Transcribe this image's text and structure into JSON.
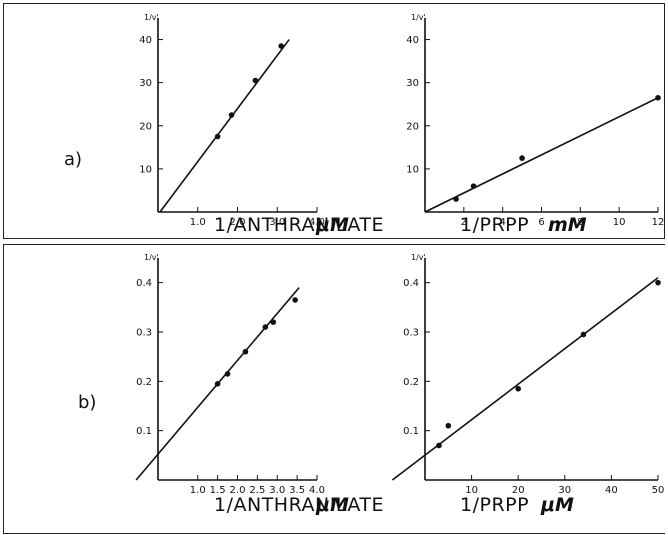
{
  "figure": {
    "panel_labels": [
      "a)",
      "b)"
    ]
  },
  "chart_data": [
    {
      "type": "scatter",
      "panel": "a)",
      "ylabel": "1/v'",
      "xlabel": "1/ANTHRANILATE",
      "xunit": "μM",
      "xlim": [
        0,
        4.0
      ],
      "ylim": [
        0,
        45
      ],
      "xticks": [
        1.0,
        2.0,
        3.0,
        4.0
      ],
      "xtick_labels": [
        "1.0",
        "2.0",
        "3.0",
        "4.0"
      ],
      "yticks": [
        10,
        20,
        30,
        40
      ],
      "ytick_labels": [
        "10",
        "20",
        "30",
        "40"
      ],
      "points": [
        [
          1.5,
          17.5
        ],
        [
          1.85,
          22.5
        ],
        [
          2.45,
          30.5
        ],
        [
          3.1,
          38.5
        ]
      ],
      "fit_line": [
        [
          0.05,
          0
        ],
        [
          3.3,
          40
        ]
      ]
    },
    {
      "type": "scatter",
      "panel": "a)",
      "ylabel": "1/v'",
      "xlabel": "1/PRPP",
      "xunit": "mM",
      "xlim": [
        0,
        12
      ],
      "ylim": [
        0,
        45
      ],
      "xticks": [
        2,
        4,
        6,
        8,
        10,
        12
      ],
      "xtick_labels": [
        "2",
        "4",
        "6",
        "8",
        "10",
        "12"
      ],
      "yticks": [
        10,
        20,
        30,
        40
      ],
      "ytick_labels": [
        "10",
        "20",
        "30",
        "40"
      ],
      "points": [
        [
          1.6,
          3
        ],
        [
          2.5,
          6
        ],
        [
          5,
          12.5
        ],
        [
          12,
          26.5
        ]
      ],
      "fit_line": [
        [
          0,
          0
        ],
        [
          12,
          26.5
        ]
      ]
    },
    {
      "type": "scatter",
      "panel": "b)",
      "ylabel": "1/v'",
      "xlabel": "1/ANTHRANILATE",
      "xunit": "μM",
      "xlim": [
        0,
        4.0
      ],
      "ylim": [
        0,
        0.45
      ],
      "xticks": [
        1.0,
        1.5,
        2.0,
        2.5,
        3.0,
        3.5,
        4.0
      ],
      "xtick_labels": [
        "1.0",
        "1.5",
        "2.0",
        "2.5",
        "3.0",
        "3.5",
        "4.0"
      ],
      "yticks": [
        0.1,
        0.2,
        0.3,
        0.4
      ],
      "ytick_labels": [
        "0.1",
        "0.2",
        "0.3",
        "0.4"
      ],
      "points": [
        [
          1.5,
          0.195
        ],
        [
          1.75,
          0.215
        ],
        [
          2.2,
          0.26
        ],
        [
          2.7,
          0.31
        ],
        [
          2.9,
          0.32
        ],
        [
          3.45,
          0.365
        ]
      ],
      "fit_line": [
        [
          -0.55,
          0
        ],
        [
          3.55,
          0.39
        ]
      ]
    },
    {
      "type": "scatter",
      "panel": "b)",
      "ylabel": "1/v'",
      "xlabel": "1/PRPP",
      "xunit": "μM",
      "xlim": [
        0,
        50
      ],
      "ylim": [
        0,
        0.45
      ],
      "xticks": [
        10,
        20,
        30,
        40,
        50
      ],
      "xtick_labels": [
        "10",
        "20",
        "30",
        "40",
        "50"
      ],
      "yticks": [
        0.1,
        0.2,
        0.3,
        0.4
      ],
      "ytick_labels": [
        "0.1",
        "0.2",
        "0.3",
        "0.4"
      ],
      "points": [
        [
          3,
          0.07
        ],
        [
          5,
          0.11
        ],
        [
          20,
          0.185
        ],
        [
          34,
          0.295
        ],
        [
          50,
          0.4
        ]
      ],
      "fit_line": [
        [
          -7,
          0
        ],
        [
          50,
          0.41
        ]
      ]
    }
  ]
}
